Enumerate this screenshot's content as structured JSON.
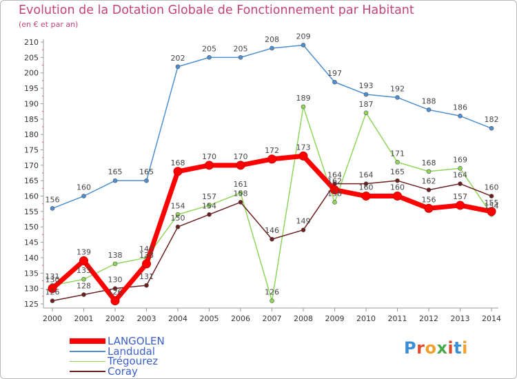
{
  "title": "Evolution de la Dotation Globale de Fonctionnement par Habitant",
  "subtitle": "(en € et par an)",
  "logo_text": "Proxiti",
  "chart_data": {
    "type": "line",
    "title": "Evolution de la Dotation Globale de Fonctionnement par Habitant",
    "ylabel": "(en € et par an)",
    "x": [
      2000,
      2001,
      2002,
      2003,
      2004,
      2005,
      2006,
      2007,
      2008,
      2009,
      2010,
      2011,
      2012,
      2013,
      2014
    ],
    "ylim": [
      125,
      210
    ],
    "ytick_step": 5,
    "grid": false,
    "legend_position": "bottom-left",
    "series": [
      {
        "name": "LANGOLEN",
        "color": "#ff0000",
        "values": [
          130,
          139,
          126,
          138,
          168,
          170,
          170,
          172,
          173,
          162,
          160,
          160,
          156,
          157,
          155
        ]
      },
      {
        "name": "Landudal",
        "color": "#4d8ed0",
        "values": [
          156,
          160,
          165,
          165,
          202,
          205,
          205,
          208,
          209,
          197,
          193,
          192,
          188,
          186,
          182
        ]
      },
      {
        "name": "Trégourez",
        "color": "#8ed65a",
        "values": [
          131,
          133,
          138,
          140,
          154,
          157,
          161,
          126,
          189,
          158,
          187,
          171,
          168,
          169,
          154
        ]
      },
      {
        "name": "Coray",
        "color": "#6b1e1e",
        "values": [
          126,
          128,
          130,
          131,
          150,
          154,
          158,
          146,
          149,
          164,
          164,
          165,
          162,
          164,
          160
        ]
      }
    ]
  }
}
